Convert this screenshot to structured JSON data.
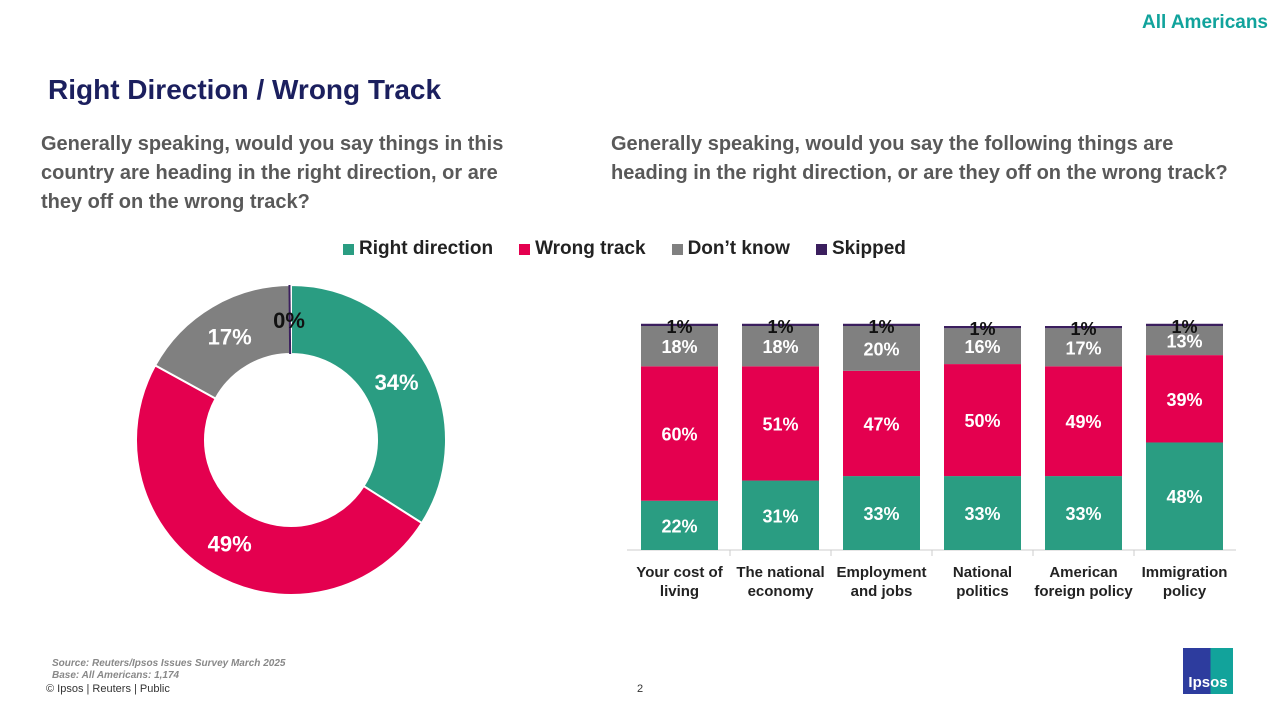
{
  "header": {
    "audience": "All Americans",
    "title": "Right Direction / Wrong Track"
  },
  "questions": {
    "overall": "Generally speaking, would you say things in this country are heading in the right direction, or are they off on the wrong track?",
    "specific": "Generally speaking, would you say the following things are heading in the right direction, or are they off on the wrong track?"
  },
  "legend": [
    {
      "label": "Right direction",
      "color": "#2a9d82"
    },
    {
      "label": "Wrong track",
      "color": "#e4004f"
    },
    {
      "label": "Don’t know",
      "color": "#808080"
    },
    {
      "label": "Skipped",
      "color": "#3b1f5e"
    }
  ],
  "chart_data": [
    {
      "type": "pie",
      "variant": "donut",
      "slices": [
        {
          "label": "Right direction",
          "value": 34,
          "text": "34%",
          "color": "#2a9d82"
        },
        {
          "label": "Wrong track",
          "value": 49,
          "text": "49%",
          "color": "#e4004f"
        },
        {
          "label": "Don’t know",
          "value": 17,
          "text": "17%",
          "color": "#808080"
        },
        {
          "label": "Skipped",
          "value": 0,
          "text": "0%",
          "color": "#3b1f5e"
        }
      ]
    },
    {
      "type": "bar",
      "stacked": true,
      "ylim": [
        0,
        100
      ],
      "categories": [
        "Your cost of living",
        "The national economy",
        "Employment and jobs",
        "National politics",
        "American foreign policy",
        "Immigration policy"
      ],
      "series": [
        {
          "name": "Right direction",
          "color": "#2a9d82",
          "values": [
            22,
            31,
            33,
            33,
            33,
            48
          ]
        },
        {
          "name": "Wrong track",
          "color": "#e4004f",
          "values": [
            60,
            51,
            47,
            50,
            49,
            39
          ]
        },
        {
          "name": "Don’t know",
          "color": "#808080",
          "values": [
            18,
            18,
            20,
            16,
            17,
            13
          ]
        },
        {
          "name": "Skipped",
          "color": "#3b1f5e",
          "values": [
            1,
            1,
            1,
            1,
            1,
            1
          ]
        }
      ]
    }
  ],
  "footer": {
    "source": "Source: Reuters/Ipsos Issues Survey March 2025",
    "base": "Base: All Americans: 1,174",
    "copyright": "© Ipsos | Reuters | Public",
    "page": "2",
    "logo_text": "Ipsos"
  }
}
